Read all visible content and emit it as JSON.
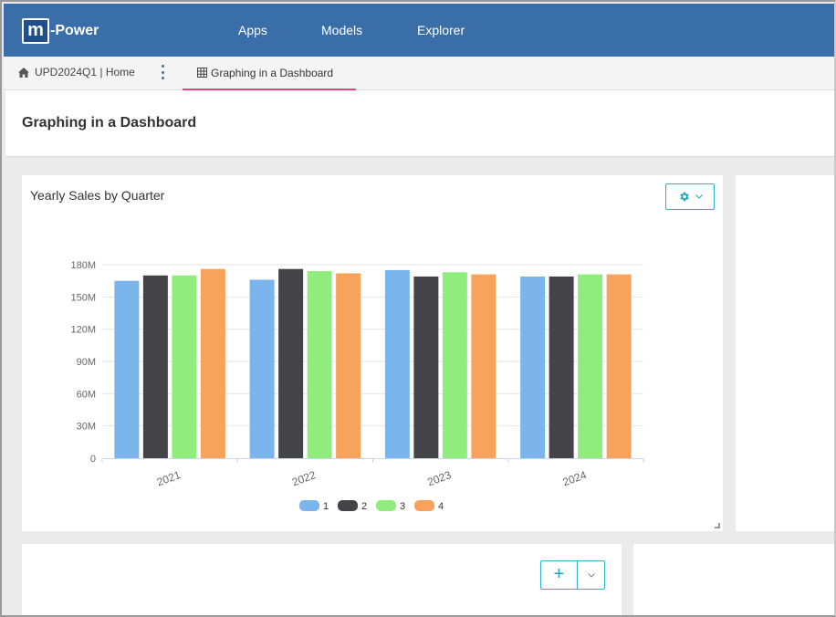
{
  "app": {
    "logo_mark": "m",
    "logo_text": "-Power",
    "nav": [
      {
        "label": "Apps"
      },
      {
        "label": "Models"
      },
      {
        "label": "Explorer"
      }
    ]
  },
  "tabs": {
    "home_label": "UPD2024Q1 | Home",
    "active_label": "Graphing in a Dashboard",
    "home_icon": "home-icon",
    "active_icon": "grid-icon"
  },
  "page": {
    "title": "Graphing in a Dashboard"
  },
  "widget": {
    "title": "Yearly Sales by Quarter",
    "settings_icon": "gear-icon"
  },
  "colors": {
    "nav_bg": "#3a6ea8",
    "accent": "#2bb5c4",
    "tab_underline": "#e0457b",
    "series": [
      "#7cb5ec",
      "#434348",
      "#90ed7d",
      "#f7a35c"
    ]
  },
  "chart_data": {
    "type": "bar",
    "categories": [
      "2021",
      "2022",
      "2023",
      "2024"
    ],
    "series": [
      {
        "name": "1",
        "values": [
          165,
          166,
          175,
          169
        ]
      },
      {
        "name": "2",
        "values": [
          170,
          176,
          169,
          169
        ]
      },
      {
        "name": "3",
        "values": [
          170,
          174,
          173,
          171
        ]
      },
      {
        "name": "4",
        "values": [
          176,
          172,
          171,
          171
        ]
      }
    ],
    "unit_multiplier": 1000000,
    "yticks": [
      "0",
      "30M",
      "60M",
      "90M",
      "120M",
      "150M",
      "180M"
    ],
    "ylim": [
      0,
      180
    ],
    "title": "",
    "xlabel": "",
    "ylabel": "",
    "grid": true,
    "legend_position": "bottom-center"
  },
  "add_widget": {
    "plus_label": "+"
  }
}
